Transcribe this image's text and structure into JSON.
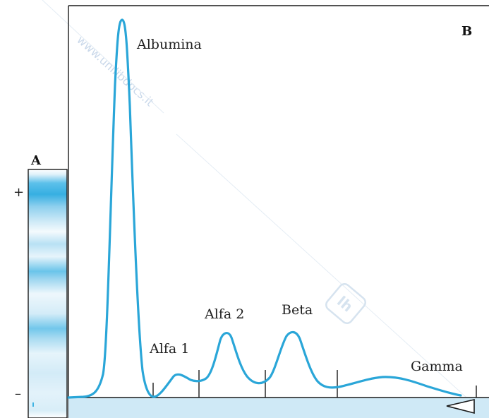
{
  "panel_a": {
    "label": "A",
    "plus_sign": "+",
    "minus_sign": "–"
  },
  "panel_b": {
    "label": "B",
    "fractions": [
      "Albumina",
      "Alfa 1",
      "Alfa 2",
      "Beta",
      "Gamma"
    ]
  },
  "watermark": {
    "text": "www.unilibdocs.it"
  },
  "colors": {
    "curve": "#2aa6d8",
    "band_strong": "#3fb3e3",
    "band_mid": "#8fd0ee",
    "band_light": "#cdeaf8",
    "baseline_strip": "#cfe9f6",
    "frame": "#1a1a1a",
    "watermark": "#c9d8ea"
  }
}
